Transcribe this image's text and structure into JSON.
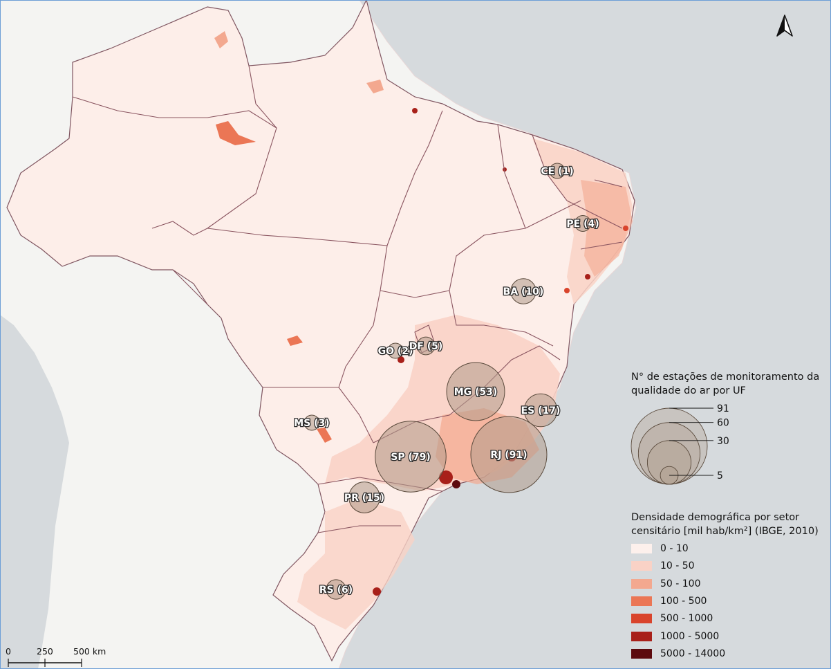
{
  "map": {
    "north_arrow_icon": "north-arrow-icon",
    "stations_legend": {
      "title_line1": "N° de estações de monitoramento da",
      "title_line2": "qualidade do ar por UF",
      "sizes": [
        "91",
        "60",
        "30",
        "5"
      ]
    },
    "density_legend": {
      "title_line1": "Densidade demográfica por setor",
      "title_line2": "censitário [mil hab/km²] (IBGE, 2010)",
      "classes": [
        {
          "label": "0 - 10",
          "color": "#fdf0ec"
        },
        {
          "label": "10 - 50",
          "color": "#f9d2c6"
        },
        {
          "label": "50 - 100",
          "color": "#f3a88f"
        },
        {
          "label": "100 - 500",
          "color": "#eb7655"
        },
        {
          "label": "500 - 1000",
          "color": "#d9442c"
        },
        {
          "label": "1000 - 5000",
          "color": "#a8201a"
        },
        {
          "label": "5000 - 14000",
          "color": "#5c0a0e"
        }
      ]
    },
    "scale_bar": {
      "tick0": "0",
      "tick1": "250",
      "tick2": "500 km"
    },
    "states": [
      {
        "label": "CE (1)",
        "count": 1
      },
      {
        "label": "PE (4)",
        "count": 4
      },
      {
        "label": "BA (10)",
        "count": 10
      },
      {
        "label": "GO (2)",
        "count": 2
      },
      {
        "label": "DF (5)",
        "count": 5
      },
      {
        "label": "MG (53)",
        "count": 53
      },
      {
        "label": "ES (17)",
        "count": 17
      },
      {
        "label": "MS (3)",
        "count": 3
      },
      {
        "label": "SP (79)",
        "count": 79
      },
      {
        "label": "RJ (91)",
        "count": 91
      },
      {
        "label": "PR (15)",
        "count": 15
      },
      {
        "label": "RS (6)",
        "count": 6
      }
    ],
    "colors": {
      "ocean": "#d6dadd",
      "land": "#f4f4f2",
      "brazil_base": "#fdeee9",
      "state_border": "#8a5560",
      "bubble_fill": "#b09b8a",
      "bubble_stroke": "#5a4a3c"
    }
  }
}
